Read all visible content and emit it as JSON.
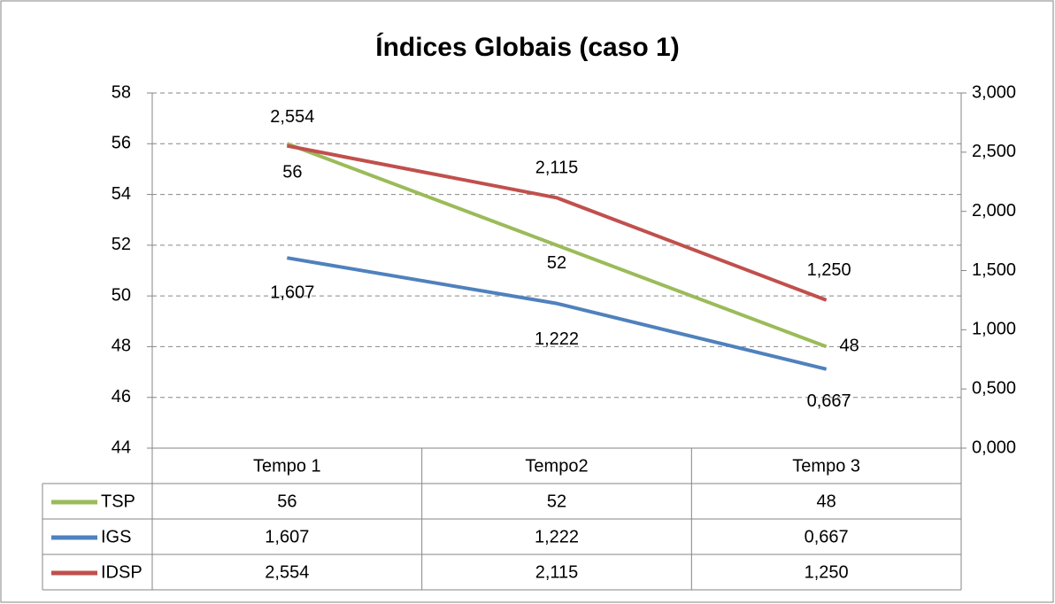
{
  "chart_data": {
    "type": "line",
    "title": "Índices Globais (caso 1)",
    "categories": [
      "Tempo 1",
      "Tempo2",
      "Tempo 3"
    ],
    "series": [
      {
        "name": "TSP",
        "color": "#9bbb59",
        "values": [
          56,
          52,
          48
        ]
      },
      {
        "name": "IGS",
        "color": "#4f81bd",
        "axis": "y2",
        "values": [
          1.607,
          1.222,
          0.667
        ],
        "value_labels": [
          "1,607",
          "1,222",
          "0,667"
        ]
      },
      {
        "name": "IDSP",
        "color": "#c0504d",
        "axis": "y2",
        "values": [
          2.554,
          2.115,
          1.25
        ],
        "value_labels": [
          "2,554",
          "2,115",
          "1,250"
        ]
      }
    ],
    "ylim": [
      44,
      58
    ],
    "yticks": [
      44,
      46,
      48,
      50,
      52,
      54,
      56,
      58
    ],
    "y2lim": [
      0,
      3
    ],
    "y2ticks": [
      {
        "value": 0,
        "label": "0,000"
      },
      {
        "value": 0.5,
        "label": "0,500"
      },
      {
        "value": 1,
        "label": "1,000"
      },
      {
        "value": 1.5,
        "label": "1,500"
      },
      {
        "value": 2,
        "label": "2,000"
      },
      {
        "value": 2.5,
        "label": "2,500"
      },
      {
        "value": 3,
        "label": "3,000"
      }
    ],
    "grid": true
  }
}
